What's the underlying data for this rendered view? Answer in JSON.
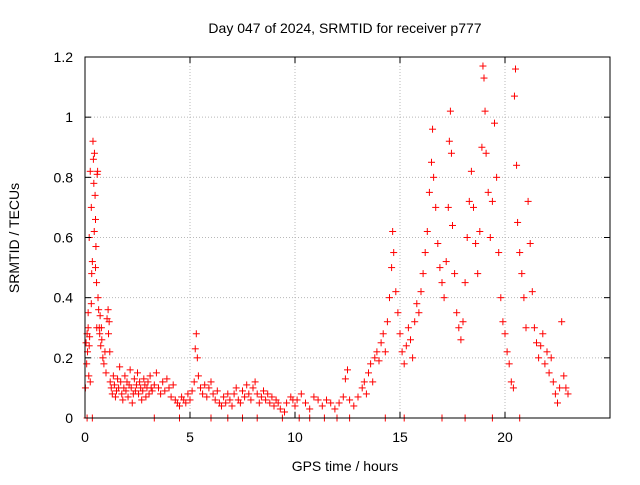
{
  "chart_data": {
    "type": "scatter",
    "title": "Day 047 of 2024, SRMTID for receiver p777",
    "xlabel": "GPS time / hours",
    "ylabel": "SRMTID / TECUs",
    "xlim": [
      0,
      25
    ],
    "ylim": [
      0,
      1.2
    ],
    "x_ticks": [
      0,
      5,
      10,
      15,
      20
    ],
    "x_tick_labels": [
      "0",
      "5",
      "10",
      "15",
      "20"
    ],
    "y_ticks": [
      0,
      0.2,
      0.4,
      0.6,
      0.8,
      1.0,
      1.2
    ],
    "y_tick_labels": [
      "0",
      "0.2",
      "0.4",
      "0.6",
      "0.8",
      "1",
      "1.2"
    ],
    "grid": true,
    "marker": "+",
    "series": [
      {
        "name": "SRMTID",
        "color": "#ff0000",
        "points": [
          [
            0.02,
            0.1
          ],
          [
            0.05,
            0.25
          ],
          [
            0.08,
            0.18
          ],
          [
            0.1,
            0.28
          ],
          [
            0.12,
            0.22
          ],
          [
            0.15,
            0.3
          ],
          [
            0.18,
            0.14
          ],
          [
            0.2,
            0.24
          ],
          [
            0.22,
            0.27
          ],
          [
            0.25,
            0.12
          ],
          [
            0.1,
            0.0
          ],
          [
            0.35,
            0.0
          ],
          [
            0.15,
            0.35
          ],
          [
            0.2,
            0.6
          ],
          [
            0.25,
            0.82
          ],
          [
            0.3,
            0.7
          ],
          [
            0.35,
            0.52
          ],
          [
            0.38,
            0.92
          ],
          [
            0.4,
            0.86
          ],
          [
            0.42,
            0.78
          ],
          [
            0.45,
            0.88
          ],
          [
            0.48,
            0.74
          ],
          [
            0.5,
            0.66
          ],
          [
            0.52,
            0.57
          ],
          [
            0.55,
            0.45
          ],
          [
            0.58,
            0.81
          ],
          [
            0.6,
            0.82
          ],
          [
            0.62,
            0.4
          ],
          [
            0.65,
            0.36
          ],
          [
            0.68,
            0.3
          ],
          [
            0.3,
            0.38
          ],
          [
            0.32,
            0.48
          ],
          [
            0.44,
            0.62
          ],
          [
            0.5,
            0.5
          ],
          [
            0.56,
            0.3
          ],
          [
            0.7,
            0.28
          ],
          [
            0.72,
            0.34
          ],
          [
            0.75,
            0.24
          ],
          [
            0.78,
            0.3
          ],
          [
            0.8,
            0.26
          ],
          [
            0.85,
            0.2
          ],
          [
            0.9,
            0.18
          ],
          [
            0.95,
            0.22
          ],
          [
            1.0,
            0.15
          ],
          [
            1.05,
            0.33
          ],
          [
            1.1,
            0.36
          ],
          [
            1.12,
            0.28
          ],
          [
            1.15,
            0.32
          ],
          [
            1.18,
            0.22
          ],
          [
            1.2,
            0.12
          ],
          [
            1.25,
            0.1
          ],
          [
            1.3,
            0.08
          ],
          [
            1.35,
            0.14
          ],
          [
            1.4,
            0.11
          ],
          [
            1.45,
            0.07
          ],
          [
            1.5,
            0.09
          ],
          [
            1.55,
            0.13
          ],
          [
            1.6,
            0.1
          ],
          [
            1.65,
            0.17
          ],
          [
            1.7,
            0.12
          ],
          [
            1.75,
            0.08
          ],
          [
            1.8,
            0.06
          ],
          [
            1.85,
            0.1
          ],
          [
            1.9,
            0.14
          ],
          [
            1.95,
            0.09
          ],
          [
            2.0,
            0.12
          ],
          [
            2.05,
            0.07
          ],
          [
            2.1,
            0.11
          ],
          [
            2.15,
            0.16
          ],
          [
            2.2,
            0.1
          ],
          [
            2.25,
            0.05
          ],
          [
            2.3,
            0.08
          ],
          [
            2.35,
            0.13
          ],
          [
            2.4,
            0.09
          ],
          [
            2.45,
            0.11
          ],
          [
            2.5,
            0.15
          ],
          [
            2.55,
            0.08
          ],
          [
            2.6,
            0.12
          ],
          [
            2.65,
            0.1
          ],
          [
            2.7,
            0.06
          ],
          [
            2.75,
            0.09
          ],
          [
            2.8,
            0.13
          ],
          [
            2.85,
            0.11
          ],
          [
            2.9,
            0.07
          ],
          [
            2.95,
            0.1
          ],
          [
            3.0,
            0.12
          ],
          [
            3.05,
            0.08
          ],
          [
            3.1,
            0.14
          ],
          [
            3.15,
            0.1
          ],
          [
            3.2,
            0.09
          ],
          [
            3.3,
            0.11
          ],
          [
            3.4,
            0.15
          ],
          [
            3.5,
            0.1
          ],
          [
            3.6,
            0.08
          ],
          [
            3.7,
            0.12
          ],
          [
            3.8,
            0.09
          ],
          [
            3.9,
            0.13
          ],
          [
            4.0,
            0.1
          ],
          [
            4.1,
            0.07
          ],
          [
            4.2,
            0.11
          ],
          [
            3.3,
            0.0
          ],
          [
            4.5,
            0.0
          ],
          [
            4.3,
            0.06
          ],
          [
            4.4,
            0.05
          ],
          [
            4.5,
            0.04
          ],
          [
            4.6,
            0.07
          ],
          [
            4.7,
            0.06
          ],
          [
            4.8,
            0.05
          ],
          [
            4.9,
            0.08
          ],
          [
            5.0,
            0.06
          ],
          [
            5.1,
            0.09
          ],
          [
            5.2,
            0.12
          ],
          [
            5.25,
            0.23
          ],
          [
            5.3,
            0.28
          ],
          [
            5.35,
            0.2
          ],
          [
            5.4,
            0.14
          ],
          [
            5.5,
            0.1
          ],
          [
            5.6,
            0.08
          ],
          [
            5.7,
            0.11
          ],
          [
            5.8,
            0.07
          ],
          [
            5.9,
            0.1
          ],
          [
            6.0,
            0.12
          ],
          [
            6.1,
            0.08
          ],
          [
            6.2,
            0.06
          ],
          [
            6.3,
            0.09
          ],
          [
            6.4,
            0.05
          ],
          [
            6.5,
            0.04
          ],
          [
            6.6,
            0.07
          ],
          [
            6.7,
            0.05
          ],
          [
            6.8,
            0.08
          ],
          [
            6.9,
            0.06
          ],
          [
            7.0,
            0.04
          ],
          [
            7.1,
            0.08
          ],
          [
            7.2,
            0.1
          ],
          [
            7.3,
            0.06
          ],
          [
            7.4,
            0.05
          ],
          [
            7.5,
            0.09
          ],
          [
            7.6,
            0.07
          ],
          [
            7.7,
            0.11
          ],
          [
            7.8,
            0.08
          ],
          [
            7.9,
            0.06
          ],
          [
            8.0,
            0.1
          ],
          [
            8.1,
            0.12
          ],
          [
            8.2,
            0.08
          ],
          [
            8.3,
            0.05
          ],
          [
            8.4,
            0.07
          ],
          [
            8.5,
            0.09
          ],
          [
            8.6,
            0.06
          ],
          [
            8.7,
            0.08
          ],
          [
            8.8,
            0.05
          ],
          [
            8.9,
            0.07
          ],
          [
            9.0,
            0.04
          ],
          [
            9.1,
            0.06
          ],
          [
            9.2,
            0.05
          ],
          [
            9.3,
            0.03
          ],
          [
            9.5,
            0.02
          ],
          [
            9.6,
            0.05
          ],
          [
            9.8,
            0.07
          ],
          [
            9.9,
            0.06
          ],
          [
            10.0,
            0.04
          ],
          [
            6.0,
            0.0
          ],
          [
            6.8,
            0.0
          ],
          [
            7.5,
            0.0
          ],
          [
            8.2,
            0.0
          ],
          [
            9.4,
            0.0
          ],
          [
            10.2,
            0.0
          ],
          [
            10.7,
            0.0
          ],
          [
            11.4,
            0.0
          ],
          [
            12.0,
            0.0
          ],
          [
            12.6,
            0.0
          ],
          [
            10.1,
            0.06
          ],
          [
            10.3,
            0.08
          ],
          [
            10.5,
            0.05
          ],
          [
            10.7,
            0.03
          ],
          [
            10.9,
            0.07
          ],
          [
            11.1,
            0.06
          ],
          [
            11.3,
            0.04
          ],
          [
            11.5,
            0.06
          ],
          [
            11.7,
            0.05
          ],
          [
            11.9,
            0.03
          ],
          [
            12.1,
            0.05
          ],
          [
            12.3,
            0.07
          ],
          [
            12.4,
            0.13
          ],
          [
            12.5,
            0.16
          ],
          [
            12.6,
            0.06
          ],
          [
            12.8,
            0.04
          ],
          [
            13.0,
            0.07
          ],
          [
            13.2,
            0.1
          ],
          [
            13.3,
            0.12
          ],
          [
            13.4,
            0.08
          ],
          [
            13.5,
            0.15
          ],
          [
            13.6,
            0.18
          ],
          [
            13.7,
            0.12
          ],
          [
            13.8,
            0.2
          ],
          [
            13.9,
            0.22
          ],
          [
            14.0,
            0.19
          ],
          [
            14.1,
            0.25
          ],
          [
            14.2,
            0.28
          ],
          [
            14.3,
            0.22
          ],
          [
            14.4,
            0.32
          ],
          [
            14.5,
            0.4
          ],
          [
            14.6,
            0.5
          ],
          [
            14.65,
            0.62
          ],
          [
            14.7,
            0.55
          ],
          [
            14.8,
            0.42
          ],
          [
            14.9,
            0.35
          ],
          [
            15.0,
            0.28
          ],
          [
            15.1,
            0.22
          ],
          [
            15.2,
            0.18
          ],
          [
            15.3,
            0.24
          ],
          [
            15.4,
            0.3
          ],
          [
            15.5,
            0.26
          ],
          [
            15.6,
            0.2
          ],
          [
            15.7,
            0.32
          ],
          [
            15.8,
            0.38
          ],
          [
            15.9,
            0.35
          ],
          [
            16.0,
            0.42
          ],
          [
            16.1,
            0.48
          ],
          [
            16.2,
            0.55
          ],
          [
            16.3,
            0.62
          ],
          [
            16.4,
            0.75
          ],
          [
            16.5,
            0.85
          ],
          [
            16.55,
            0.96
          ],
          [
            16.6,
            0.8
          ],
          [
            16.7,
            0.7
          ],
          [
            16.8,
            0.58
          ],
          [
            16.9,
            0.5
          ],
          [
            17.0,
            0.45
          ],
          [
            17.1,
            0.4
          ],
          [
            17.2,
            0.52
          ],
          [
            17.3,
            0.7
          ],
          [
            17.35,
            0.92
          ],
          [
            17.4,
            1.02
          ],
          [
            17.45,
            0.88
          ],
          [
            17.5,
            0.64
          ],
          [
            17.6,
            0.48
          ],
          [
            17.7,
            0.35
          ],
          [
            17.8,
            0.3
          ],
          [
            17.9,
            0.26
          ],
          [
            18.0,
            0.32
          ],
          [
            18.1,
            0.45
          ],
          [
            18.2,
            0.6
          ],
          [
            18.3,
            0.72
          ],
          [
            18.4,
            0.82
          ],
          [
            18.5,
            0.7
          ],
          [
            18.6,
            0.58
          ],
          [
            18.7,
            0.48
          ],
          [
            18.8,
            0.62
          ],
          [
            18.9,
            0.9
          ],
          [
            18.95,
            1.17
          ],
          [
            19.0,
            1.13
          ],
          [
            19.05,
            1.02
          ],
          [
            19.1,
            0.88
          ],
          [
            19.2,
            0.75
          ],
          [
            19.3,
            0.6
          ],
          [
            19.4,
            0.72
          ],
          [
            19.5,
            0.98
          ],
          [
            19.6,
            0.8
          ],
          [
            19.7,
            0.55
          ],
          [
            19.8,
            0.4
          ],
          [
            19.9,
            0.32
          ],
          [
            20.0,
            0.28
          ],
          [
            20.1,
            0.22
          ],
          [
            20.2,
            0.18
          ],
          [
            20.3,
            0.12
          ],
          [
            20.4,
            0.1
          ],
          [
            20.45,
            1.07
          ],
          [
            20.5,
            1.16
          ],
          [
            20.55,
            0.84
          ],
          [
            20.6,
            0.65
          ],
          [
            20.7,
            0.55
          ],
          [
            20.8,
            0.48
          ],
          [
            20.9,
            0.4
          ],
          [
            21.0,
            0.3
          ],
          [
            21.1,
            0.72
          ],
          [
            21.2,
            0.58
          ],
          [
            21.3,
            0.42
          ],
          [
            21.4,
            0.3
          ],
          [
            21.5,
            0.25
          ],
          [
            21.6,
            0.2
          ],
          [
            21.7,
            0.24
          ],
          [
            21.8,
            0.28
          ],
          [
            21.9,
            0.18
          ],
          [
            22.0,
            0.22
          ],
          [
            22.1,
            0.15
          ],
          [
            22.2,
            0.2
          ],
          [
            22.3,
            0.12
          ],
          [
            22.4,
            0.08
          ],
          [
            22.5,
            0.05
          ],
          [
            22.6,
            0.1
          ],
          [
            22.7,
            0.32
          ],
          [
            22.8,
            0.14
          ],
          [
            22.9,
            0.1
          ],
          [
            23.0,
            0.08
          ],
          [
            14.3,
            0.0
          ],
          [
            15.2,
            0.0
          ],
          [
            17.0,
            0.0
          ],
          [
            18.1,
            0.0
          ],
          [
            19.4,
            0.0
          ],
          [
            20.7,
            0.0
          ]
        ]
      }
    ]
  }
}
